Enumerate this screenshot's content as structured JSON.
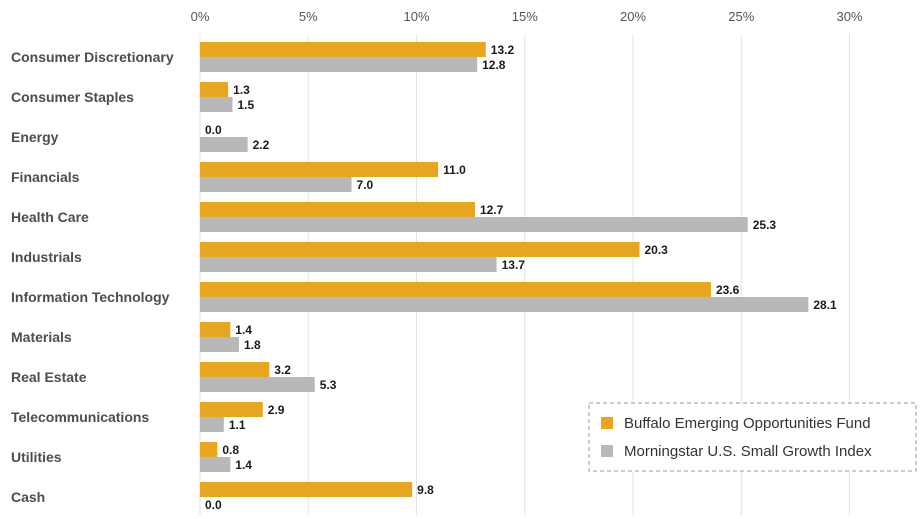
{
  "chart_data": {
    "type": "bar",
    "orientation": "horizontal",
    "categories": [
      "Consumer Discretionary",
      "Consumer Staples",
      "Energy",
      "Financials",
      "Health Care",
      "Industrials",
      "Information Technology",
      "Materials",
      "Real Estate",
      "Telecommunications",
      "Utilities",
      "Cash"
    ],
    "series": [
      {
        "name": "Buffalo Emerging Opportunities Fund",
        "color": "#E8A520",
        "values": [
          13.2,
          1.3,
          0.0,
          11.0,
          12.7,
          20.3,
          23.6,
          1.4,
          3.2,
          2.9,
          0.8,
          9.8
        ],
        "labels": [
          "13.2",
          "1.3",
          "0.0",
          "11.0",
          "12.7",
          "20.3",
          "23.6",
          "1.4",
          "3.2",
          "2.9",
          "0.8",
          "9.8"
        ]
      },
      {
        "name": "Morningstar U.S. Small Growth Index",
        "color": "#B8B8B8",
        "values": [
          12.8,
          1.5,
          2.2,
          7.0,
          25.3,
          13.7,
          28.1,
          1.8,
          5.3,
          1.1,
          1.4,
          0.0
        ],
        "labels": [
          "12.8",
          "1.5",
          "2.2",
          "7.0",
          "25.3",
          "13.7",
          "28.1",
          "1.8",
          "5.3",
          "1.1",
          "1.4",
          "0.0"
        ]
      }
    ],
    "x_ticks": [
      "0%",
      "5%",
      "10%",
      "15%",
      "20%",
      "25%",
      "30%"
    ],
    "x_tick_values": [
      0,
      5,
      10,
      15,
      20,
      25,
      30
    ],
    "xlim": [
      0,
      30
    ],
    "grid": true,
    "legend_position": "bottom-right",
    "legend_border": "dashed"
  }
}
